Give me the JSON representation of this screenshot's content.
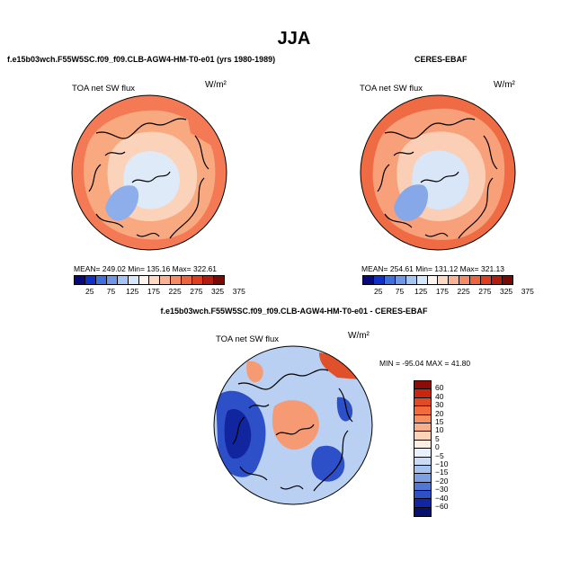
{
  "figure": {
    "season": "JJA"
  },
  "top_left": {
    "title": "f.e15b03wch.F55W5SC.f09_f09.CLB-AGW4-HM-T0-e01 (yrs 1980-1989)",
    "variable": "TOA net SW flux",
    "units": "W/m²",
    "stats": "MEAN= 249.02   Min= 135.16   Max= 322.61"
  },
  "top_right": {
    "title": "CERES-EBAF",
    "variable": "TOA net SW flux",
    "units": "W/m²",
    "stats": "MEAN= 254.61   Min= 131.12   Max= 321.13"
  },
  "diff": {
    "title": "f.e15b03wch.F55W5SC.f09_f09.CLB-AGW4-HM-T0-e01 - CERES-EBAF",
    "variable": "TOA net SW flux",
    "units": "W/m²",
    "stats": "MIN = -95.04  MAX =  41.80"
  },
  "colorbar_abs": {
    "ticks": [
      "25",
      "75",
      "125",
      "175",
      "225",
      "275",
      "325",
      "375"
    ],
    "colors": [
      "#08087a",
      "#1030c8",
      "#3f6fdb",
      "#7096e6",
      "#a6c4f2",
      "#d7e6f9",
      "#fff5ee",
      "#fcd8c4",
      "#f9b394",
      "#f58a67",
      "#ec6540",
      "#de3d1f",
      "#b51c10",
      "#7a0a05"
    ]
  },
  "colorbar_diff": {
    "ticks": [
      "60",
      "40",
      "30",
      "20",
      "15",
      "10",
      "5",
      "0",
      "−5",
      "−10",
      "−15",
      "−20",
      "−30",
      "−40",
      "−60"
    ],
    "colors": [
      "#8c0d08",
      "#c8260f",
      "#e04a24",
      "#f06b3d",
      "#f58f60",
      "#f9b08a",
      "#fcd3b8",
      "#fdeee4",
      "#e8f0fb",
      "#c9dbf5",
      "#a6c2ef",
      "#7d9fe4",
      "#5276d6",
      "#2f4fc4",
      "#1225a3",
      "#08106e"
    ]
  },
  "maps": {
    "top_left_colors": {
      "outer": "#f47a55",
      "mid": "#f9a97f",
      "inner": "#fbd3bb",
      "arctic": "#dfeaf8",
      "greenland": "#8daeea"
    },
    "top_right_colors": {
      "outer": "#ef6b44",
      "mid": "#f8a07a",
      "inner": "#fbcfb6",
      "arctic": "#d8e6f8",
      "greenland": "#86a8e8"
    },
    "diff_colors": {
      "base": "#b9d0f2",
      "warm": "#f59a72",
      "cold": "#2d50c8",
      "deep": "#10259e",
      "hot": "#e0502a"
    }
  }
}
